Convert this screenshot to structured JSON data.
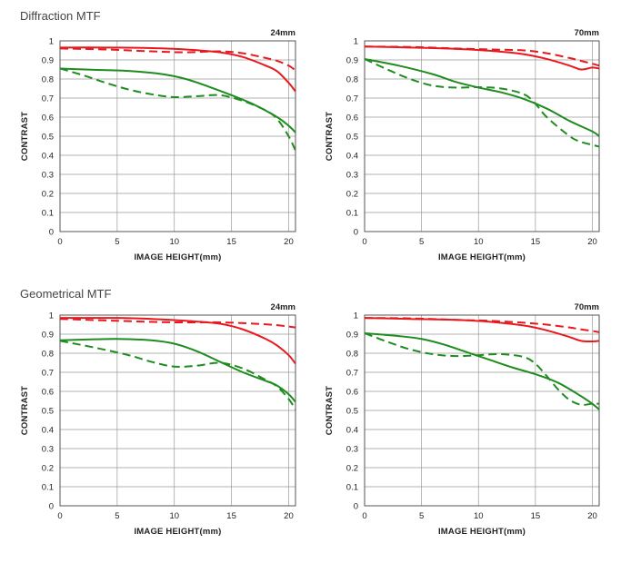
{
  "sections": [
    {
      "title": "Diffraction MTF"
    },
    {
      "title": "Geometrical MTF"
    }
  ],
  "colors": {
    "red": "#e8191e",
    "green": "#1e8c1e",
    "grid": "#9a9a9a",
    "frame": "#555555"
  },
  "chart_data": [
    {
      "type": "line",
      "section": "Diffraction MTF",
      "focal": "24mm",
      "xlabel": "IMAGE HEIGHT(mm)",
      "ylabel": "CONTRAST",
      "xlim": [
        0,
        20.6
      ],
      "ylim": [
        0,
        1
      ],
      "xticks": [
        "0",
        "5",
        "10",
        "15",
        "20"
      ],
      "yticks": [
        "0",
        "0.1",
        "0.2",
        "0.3",
        "0.4",
        "0.5",
        "0.6",
        "0.7",
        "0.8",
        "0.9",
        "1"
      ],
      "grid": true,
      "series": [
        {
          "color": "red",
          "style": "solid",
          "points": [
            [
              0,
              0.965
            ],
            [
              4,
              0.965
            ],
            [
              8,
              0.962
            ],
            [
              11,
              0.955
            ],
            [
              14,
              0.94
            ],
            [
              16,
              0.915
            ],
            [
              18,
              0.87
            ],
            [
              19,
              0.84
            ],
            [
              20,
              0.78
            ],
            [
              20.6,
              0.735
            ]
          ]
        },
        {
          "color": "red",
          "style": "dashed",
          "points": [
            [
              0,
              0.96
            ],
            [
              4,
              0.955
            ],
            [
              8,
              0.945
            ],
            [
              11,
              0.94
            ],
            [
              14,
              0.945
            ],
            [
              16,
              0.935
            ],
            [
              18,
              0.91
            ],
            [
              19,
              0.895
            ],
            [
              20,
              0.87
            ],
            [
              20.6,
              0.845
            ]
          ]
        },
        {
          "color": "green",
          "style": "solid",
          "points": [
            [
              0,
              0.855
            ],
            [
              3,
              0.848
            ],
            [
              6,
              0.842
            ],
            [
              9,
              0.825
            ],
            [
              11,
              0.8
            ],
            [
              13,
              0.76
            ],
            [
              15,
              0.715
            ],
            [
              17,
              0.665
            ],
            [
              19,
              0.6
            ],
            [
              20,
              0.555
            ],
            [
              20.6,
              0.52
            ]
          ]
        },
        {
          "color": "green",
          "style": "dashed",
          "points": [
            [
              0,
              0.855
            ],
            [
              2,
              0.82
            ],
            [
              4,
              0.78
            ],
            [
              6,
              0.745
            ],
            [
              8,
              0.72
            ],
            [
              10,
              0.705
            ],
            [
              12,
              0.71
            ],
            [
              14,
              0.715
            ],
            [
              16,
              0.685
            ],
            [
              18,
              0.635
            ],
            [
              19,
              0.59
            ],
            [
              20,
              0.5
            ],
            [
              20.6,
              0.425
            ]
          ]
        }
      ]
    },
    {
      "type": "line",
      "section": "Diffraction MTF",
      "focal": "70mm",
      "xlabel": "IMAGE HEIGHT(mm)",
      "ylabel": "CONTRAST",
      "xlim": [
        0,
        20.6
      ],
      "ylim": [
        0,
        1
      ],
      "xticks": [
        "0",
        "5",
        "10",
        "15",
        "20"
      ],
      "yticks": [
        "0",
        "0.1",
        "0.2",
        "0.3",
        "0.4",
        "0.5",
        "0.6",
        "0.7",
        "0.8",
        "0.9",
        "1"
      ],
      "grid": true,
      "series": [
        {
          "color": "red",
          "style": "solid",
          "points": [
            [
              0,
              0.97
            ],
            [
              4,
              0.965
            ],
            [
              8,
              0.958
            ],
            [
              11,
              0.948
            ],
            [
              14,
              0.93
            ],
            [
              16,
              0.905
            ],
            [
              18,
              0.87
            ],
            [
              19,
              0.85
            ],
            [
              20,
              0.86
            ],
            [
              20.6,
              0.855
            ]
          ]
        },
        {
          "color": "red",
          "style": "dashed",
          "points": [
            [
              0,
              0.97
            ],
            [
              4,
              0.968
            ],
            [
              8,
              0.96
            ],
            [
              11,
              0.955
            ],
            [
              14,
              0.95
            ],
            [
              16,
              0.935
            ],
            [
              18,
              0.91
            ],
            [
              19,
              0.895
            ],
            [
              20,
              0.88
            ],
            [
              20.6,
              0.87
            ]
          ]
        },
        {
          "color": "green",
          "style": "solid",
          "points": [
            [
              0,
              0.905
            ],
            [
              3,
              0.87
            ],
            [
              6,
              0.825
            ],
            [
              8,
              0.785
            ],
            [
              10,
              0.755
            ],
            [
              12,
              0.73
            ],
            [
              14,
              0.695
            ],
            [
              16,
              0.645
            ],
            [
              18,
              0.58
            ],
            [
              20,
              0.525
            ],
            [
              20.6,
              0.5
            ]
          ]
        },
        {
          "color": "green",
          "style": "dashed",
          "points": [
            [
              0,
              0.905
            ],
            [
              2,
              0.85
            ],
            [
              4,
              0.8
            ],
            [
              6,
              0.765
            ],
            [
              8,
              0.755
            ],
            [
              10,
              0.757
            ],
            [
              12,
              0.75
            ],
            [
              14,
              0.72
            ],
            [
              15,
              0.67
            ],
            [
              16,
              0.6
            ],
            [
              18,
              0.5
            ],
            [
              19,
              0.47
            ],
            [
              20,
              0.455
            ],
            [
              20.6,
              0.445
            ]
          ]
        }
      ]
    },
    {
      "type": "line",
      "section": "Geometrical MTF",
      "focal": "24mm",
      "xlabel": "IMAGE HEIGHT(mm)",
      "ylabel": "CONTRAST",
      "xlim": [
        0,
        20.6
      ],
      "ylim": [
        0,
        1
      ],
      "xticks": [
        "0",
        "5",
        "10",
        "15",
        "20"
      ],
      "yticks": [
        "0",
        "0.1",
        "0.2",
        "0.3",
        "0.4",
        "0.5",
        "0.6",
        "0.7",
        "0.8",
        "0.9",
        "1"
      ],
      "grid": true,
      "series": [
        {
          "color": "red",
          "style": "solid",
          "points": [
            [
              0,
              0.985
            ],
            [
              5,
              0.985
            ],
            [
              8,
              0.98
            ],
            [
              11,
              0.97
            ],
            [
              14,
              0.955
            ],
            [
              16,
              0.925
            ],
            [
              18,
              0.875
            ],
            [
              19,
              0.84
            ],
            [
              20,
              0.79
            ],
            [
              20.6,
              0.745
            ]
          ]
        },
        {
          "color": "red",
          "style": "dashed",
          "points": [
            [
              0,
              0.98
            ],
            [
              5,
              0.97
            ],
            [
              10,
              0.962
            ],
            [
              14,
              0.962
            ],
            [
              17,
              0.955
            ],
            [
              19,
              0.947
            ],
            [
              20.6,
              0.935
            ]
          ]
        },
        {
          "color": "green",
          "style": "solid",
          "points": [
            [
              0,
              0.868
            ],
            [
              3,
              0.873
            ],
            [
              5,
              0.875
            ],
            [
              8,
              0.868
            ],
            [
              10,
              0.85
            ],
            [
              12,
              0.81
            ],
            [
              14,
              0.755
            ],
            [
              16,
              0.7
            ],
            [
              18,
              0.655
            ],
            [
              19,
              0.63
            ],
            [
              20,
              0.585
            ],
            [
              20.6,
              0.545
            ]
          ]
        },
        {
          "color": "green",
          "style": "dashed",
          "points": [
            [
              0,
              0.865
            ],
            [
              3,
              0.83
            ],
            [
              6,
              0.79
            ],
            [
              8,
              0.755
            ],
            [
              10,
              0.73
            ],
            [
              12,
              0.735
            ],
            [
              14,
              0.75
            ],
            [
              16,
              0.72
            ],
            [
              18,
              0.66
            ],
            [
              19,
              0.625
            ],
            [
              20,
              0.56
            ],
            [
              20.6,
              0.505
            ]
          ]
        }
      ]
    },
    {
      "type": "line",
      "section": "Geometrical MTF",
      "focal": "70mm",
      "xlabel": "IMAGE HEIGHT(mm)",
      "ylabel": "CONTRAST",
      "xlim": [
        0,
        20.6
      ],
      "ylim": [
        0,
        1
      ],
      "xticks": [
        "0",
        "5",
        "10",
        "15",
        "20"
      ],
      "yticks": [
        "0",
        "0.1",
        "0.2",
        "0.3",
        "0.4",
        "0.5",
        "0.6",
        "0.7",
        "0.8",
        "0.9",
        "1"
      ],
      "grid": true,
      "series": [
        {
          "color": "red",
          "style": "solid",
          "points": [
            [
              0,
              0.985
            ],
            [
              4,
              0.98
            ],
            [
              8,
              0.975
            ],
            [
              11,
              0.965
            ],
            [
              14,
              0.945
            ],
            [
              16,
              0.92
            ],
            [
              18,
              0.885
            ],
            [
              19,
              0.865
            ],
            [
              20,
              0.862
            ],
            [
              20.6,
              0.865
            ]
          ]
        },
        {
          "color": "red",
          "style": "dashed",
          "points": [
            [
              0,
              0.985
            ],
            [
              4,
              0.983
            ],
            [
              8,
              0.975
            ],
            [
              11,
              0.97
            ],
            [
              14,
              0.96
            ],
            [
              16,
              0.95
            ],
            [
              18,
              0.935
            ],
            [
              19,
              0.925
            ],
            [
              20,
              0.917
            ],
            [
              20.6,
              0.91
            ]
          ]
        },
        {
          "color": "green",
          "style": "solid",
          "points": [
            [
              0,
              0.905
            ],
            [
              3,
              0.89
            ],
            [
              5,
              0.875
            ],
            [
              7,
              0.845
            ],
            [
              9,
              0.805
            ],
            [
              11,
              0.765
            ],
            [
              13,
              0.725
            ],
            [
              15,
              0.69
            ],
            [
              17,
              0.645
            ],
            [
              19,
              0.575
            ],
            [
              20,
              0.535
            ],
            [
              20.6,
              0.505
            ]
          ]
        },
        {
          "color": "green",
          "style": "dashed",
          "points": [
            [
              0,
              0.905
            ],
            [
              2,
              0.86
            ],
            [
              4,
              0.82
            ],
            [
              6,
              0.795
            ],
            [
              8,
              0.785
            ],
            [
              10,
              0.79
            ],
            [
              12,
              0.795
            ],
            [
              14,
              0.78
            ],
            [
              15,
              0.745
            ],
            [
              16,
              0.68
            ],
            [
              17,
              0.61
            ],
            [
              18,
              0.555
            ],
            [
              19,
              0.53
            ],
            [
              20,
              0.535
            ],
            [
              20.6,
              0.535
            ]
          ]
        }
      ]
    }
  ]
}
